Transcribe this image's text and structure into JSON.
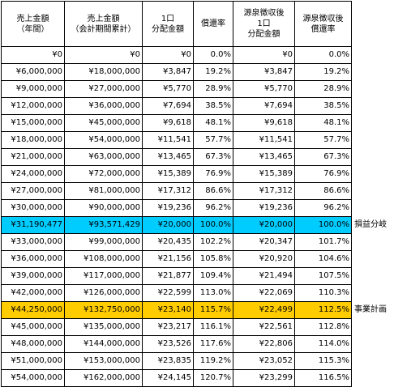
{
  "headers": [
    [
      "売上金額",
      "（年間）"
    ],
    [
      "売上金額",
      "（会計期間累計）"
    ],
    [
      "1口",
      "分配金額"
    ],
    [
      "償還率"
    ],
    [
      "源泉徴収後",
      "1口",
      "分配金額"
    ],
    [
      "源泉徴収後",
      "償還率"
    ]
  ],
  "rows": [
    {
      "cells": [
        "¥0",
        "¥0",
        "¥0",
        "0.0%",
        "¥0",
        "0.0%"
      ],
      "note": "",
      "highlight": ""
    },
    {
      "cells": [
        "¥6,000,000",
        "¥18,000,000",
        "¥3,847",
        "19.2%",
        "¥3,847",
        "19.2%"
      ],
      "note": "",
      "highlight": ""
    },
    {
      "cells": [
        "¥9,000,000",
        "¥27,000,000",
        "¥5,770",
        "28.9%",
        "¥5,770",
        "28.9%"
      ],
      "note": "",
      "highlight": ""
    },
    {
      "cells": [
        "¥12,000,000",
        "¥36,000,000",
        "¥7,694",
        "38.5%",
        "¥7,694",
        "38.5%"
      ],
      "note": "",
      "highlight": ""
    },
    {
      "cells": [
        "¥15,000,000",
        "¥45,000,000",
        "¥9,618",
        "48.1%",
        "¥9,618",
        "48.1%"
      ],
      "note": "",
      "highlight": ""
    },
    {
      "cells": [
        "¥18,000,000",
        "¥54,000,000",
        "¥11,541",
        "57.7%",
        "¥11,541",
        "57.7%"
      ],
      "note": "",
      "highlight": ""
    },
    {
      "cells": [
        "¥21,000,000",
        "¥63,000,000",
        "¥13,465",
        "67.3%",
        "¥13,465",
        "67.3%"
      ],
      "note": "",
      "highlight": ""
    },
    {
      "cells": [
        "¥24,000,000",
        "¥72,000,000",
        "¥15,389",
        "76.9%",
        "¥15,389",
        "76.9%"
      ],
      "note": "",
      "highlight": ""
    },
    {
      "cells": [
        "¥27,000,000",
        "¥81,000,000",
        "¥17,312",
        "86.6%",
        "¥17,312",
        "86.6%"
      ],
      "note": "",
      "highlight": ""
    },
    {
      "cells": [
        "¥30,000,000",
        "¥90,000,000",
        "¥19,236",
        "96.2%",
        "¥19,236",
        "96.2%"
      ],
      "note": "",
      "highlight": ""
    },
    {
      "cells": [
        "¥31,190,477",
        "¥93,571,429",
        "¥20,000",
        "100.0%",
        "¥20,000",
        "100.0%"
      ],
      "note": "損益分岐",
      "highlight": "blue"
    },
    {
      "cells": [
        "¥33,000,000",
        "¥99,000,000",
        "¥20,435",
        "102.2%",
        "¥20,347",
        "101.7%"
      ],
      "note": "",
      "highlight": ""
    },
    {
      "cells": [
        "¥36,000,000",
        "¥108,000,000",
        "¥21,156",
        "105.8%",
        "¥20,920",
        "104.6%"
      ],
      "note": "",
      "highlight": ""
    },
    {
      "cells": [
        "¥39,000,000",
        "¥117,000,000",
        "¥21,877",
        "109.4%",
        "¥21,494",
        "107.5%"
      ],
      "note": "",
      "highlight": ""
    },
    {
      "cells": [
        "¥42,000,000",
        "¥126,000,000",
        "¥22,599",
        "113.0%",
        "¥22,069",
        "110.3%"
      ],
      "note": "",
      "highlight": ""
    },
    {
      "cells": [
        "¥44,250,000",
        "¥132,750,000",
        "¥23,140",
        "115.7%",
        "¥22,499",
        "112.5%"
      ],
      "note": "事業計画",
      "highlight": "orange"
    },
    {
      "cells": [
        "¥45,000,000",
        "¥135,000,000",
        "¥23,217",
        "116.1%",
        "¥22,561",
        "112.8%"
      ],
      "note": "",
      "highlight": ""
    },
    {
      "cells": [
        "¥48,000,000",
        "¥144,000,000",
        "¥23,526",
        "117.6%",
        "¥22,806",
        "114.0%"
      ],
      "note": "",
      "highlight": ""
    },
    {
      "cells": [
        "¥51,000,000",
        "¥153,000,000",
        "¥23,835",
        "119.2%",
        "¥23,052",
        "115.3%"
      ],
      "note": "",
      "highlight": ""
    },
    {
      "cells": [
        "¥54,000,000",
        "¥162,000,000",
        "¥24,145",
        "120.7%",
        "¥23,299",
        "116.5%"
      ],
      "note": "",
      "highlight": ""
    }
  ],
  "colors": {
    "breakeven_highlight": "#00ccff",
    "plan_highlight": "#ffcc00"
  }
}
